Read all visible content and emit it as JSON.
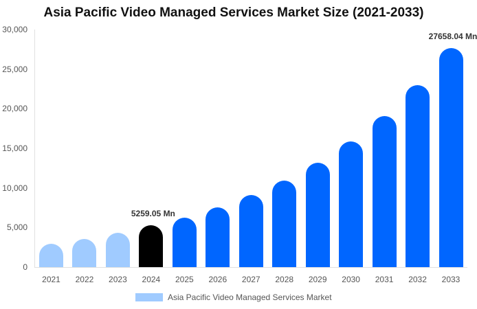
{
  "chart_data": {
    "type": "bar",
    "title": "Asia Pacific Video Managed Services Market Size (2021-2033)",
    "xlabel": "",
    "ylabel": "",
    "ylim": [
      0,
      30000
    ],
    "yticks": [
      "0",
      "5,000",
      "10,000",
      "15,000",
      "20,000",
      "25,000",
      "30,000"
    ],
    "categories": [
      "2021",
      "2022",
      "2023",
      "2024",
      "2025",
      "2026",
      "2027",
      "2028",
      "2029",
      "2030",
      "2031",
      "2032",
      "2033"
    ],
    "series": [
      {
        "name": "Asia Pacific Video Managed Services Market",
        "values": [
          2950,
          3580,
          4340,
          5259.05,
          6260,
          7550,
          9100,
          10950,
          13200,
          15870,
          19100,
          22970,
          27658.04
        ]
      }
    ],
    "bar_colors": [
      "#a0cbff",
      "#a0cbff",
      "#a0cbff",
      "#000000",
      "#0066ff",
      "#0066ff",
      "#0066ff",
      "#0066ff",
      "#0066ff",
      "#0066ff",
      "#0066ff",
      "#0066ff",
      "#0066ff"
    ],
    "annotations": [
      {
        "category": "2024",
        "text": "5259.05 Mn"
      },
      {
        "category": "2033",
        "text": "27658.04 Mn"
      }
    ],
    "grid": false,
    "legend_position": "bottom"
  },
  "legend": {
    "label": "Asia Pacific Video Managed Services Market",
    "color": "#a0cbff"
  }
}
